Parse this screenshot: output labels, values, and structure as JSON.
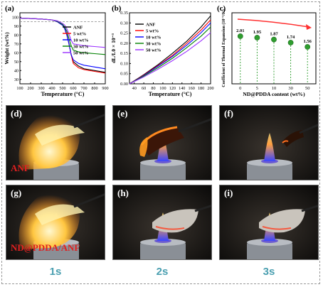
{
  "chart_data": [
    {
      "panel": "(a)",
      "type": "line",
      "xlabel": "Temperature (°C)",
      "ylabel": "Weight (wt%)",
      "xlim": [
        100,
        900
      ],
      "ylim": [
        25,
        105
      ],
      "xticks": [
        100,
        200,
        300,
        400,
        500,
        600,
        700,
        800,
        900
      ],
      "yticks": [
        30,
        40,
        50,
        60,
        70,
        80,
        90,
        100
      ],
      "reference_line_y": 95,
      "series": [
        {
          "name": "ANF",
          "color": "#000000",
          "x": [
            100,
            200,
            300,
            400,
            450,
            500,
            520,
            540,
            560,
            580,
            600,
            650,
            700,
            800,
            900
          ],
          "y": [
            99,
            98.5,
            98,
            97,
            95,
            91,
            87,
            80,
            70,
            58,
            50,
            45,
            42,
            40,
            38
          ]
        },
        {
          "name": "5 wt%",
          "color": "#ff0000",
          "x": [
            100,
            200,
            300,
            400,
            450,
            500,
            520,
            540,
            560,
            580,
            600,
            650,
            700,
            800,
            900
          ],
          "y": [
            99,
            98.5,
            98,
            97,
            95,
            91,
            87,
            80,
            70,
            58,
            48,
            43,
            41,
            39,
            37
          ]
        },
        {
          "name": "10 wt%",
          "color": "#0000ff",
          "x": [
            100,
            200,
            300,
            400,
            450,
            500,
            520,
            540,
            560,
            580,
            600,
            650,
            700,
            800,
            900
          ],
          "y": [
            99,
            98.5,
            98,
            97,
            95,
            91,
            87,
            80,
            70,
            58,
            52,
            48,
            46,
            44,
            42
          ]
        },
        {
          "name": "30 wt%",
          "color": "#008000",
          "x": [
            100,
            200,
            300,
            400,
            450,
            500,
            520,
            540,
            560,
            580,
            600,
            650,
            700,
            800,
            900
          ],
          "y": [
            99,
            98.5,
            98,
            97,
            95.5,
            92,
            89,
            84,
            76,
            68,
            63,
            61,
            60,
            59,
            58
          ]
        },
        {
          "name": "50 wt%",
          "color": "#9b30ff",
          "x": [
            100,
            200,
            300,
            400,
            450,
            500,
            520,
            540,
            560,
            580,
            600,
            650,
            700,
            800,
            900
          ],
          "y": [
            99,
            98.5,
            98,
            97,
            96,
            93,
            91,
            87,
            81,
            74,
            70,
            69,
            68,
            67,
            66
          ]
        }
      ]
    },
    {
      "panel": "(b)",
      "type": "line",
      "xlabel": "Temperature (°C)",
      "ylabel": "dL/L0 × 10⁻³",
      "xlim": [
        30,
        200
      ],
      "ylim": [
        0,
        0.35
      ],
      "xticks": [
        40,
        60,
        80,
        100,
        120,
        140,
        160,
        180,
        200
      ],
      "yticks": [
        0.0,
        0.05,
        0.1,
        0.15,
        0.2,
        0.25,
        0.3,
        0.35
      ],
      "series": [
        {
          "name": "ANF",
          "color": "#000000",
          "x": [
            30,
            60,
            90,
            120,
            150,
            180,
            200
          ],
          "y": [
            0,
            0.045,
            0.095,
            0.15,
            0.21,
            0.28,
            0.335
          ]
        },
        {
          "name": "5 wt%",
          "color": "#ff0000",
          "x": [
            30,
            60,
            90,
            120,
            150,
            180,
            200
          ],
          "y": [
            0,
            0.043,
            0.09,
            0.14,
            0.2,
            0.265,
            0.315
          ]
        },
        {
          "name": "10 wt%",
          "color": "#0000ff",
          "x": [
            30,
            60,
            90,
            120,
            150,
            180,
            200
          ],
          "y": [
            0,
            0.041,
            0.087,
            0.135,
            0.19,
            0.252,
            0.3
          ]
        },
        {
          "name": "30 wt%",
          "color": "#008000",
          "x": [
            30,
            60,
            90,
            120,
            150,
            180,
            200
          ],
          "y": [
            0,
            0.038,
            0.08,
            0.126,
            0.178,
            0.235,
            0.28
          ]
        },
        {
          "name": "50 wt%",
          "color": "#9b30ff",
          "x": [
            30,
            60,
            90,
            120,
            150,
            180,
            200
          ],
          "y": [
            0,
            0.034,
            0.072,
            0.114,
            0.16,
            0.212,
            0.252
          ]
        }
      ]
    },
    {
      "panel": "(c)",
      "type": "scatter",
      "xlabel": "ND@PDDA content (wt%)",
      "ylabel": "Coefficient of Thermal Expansion (10⁻⁶/K)",
      "categories": [
        "0",
        "5",
        "10",
        "30",
        "50"
      ],
      "values": [
        2.01,
        1.95,
        1.87,
        1.74,
        1.56
      ],
      "value_labels": [
        "2.01",
        "1.95",
        "1.87",
        "1.74",
        "1.56"
      ],
      "ylim": [
        0,
        3
      ],
      "point_color": "#2e9d2e",
      "trend_arrow_color": "#ff3030"
    }
  ],
  "photos": {
    "panels": [
      {
        "label": "(d)",
        "sample": "ANF"
      },
      {
        "label": "(e)",
        "sample": ""
      },
      {
        "label": "(f)",
        "sample": ""
      },
      {
        "label": "(g)",
        "sample": "ND@PDDA/ANF"
      },
      {
        "label": "(h)",
        "sample": ""
      },
      {
        "label": "(i)",
        "sample": ""
      }
    ],
    "times": [
      "1s",
      "2s",
      "3s"
    ]
  }
}
